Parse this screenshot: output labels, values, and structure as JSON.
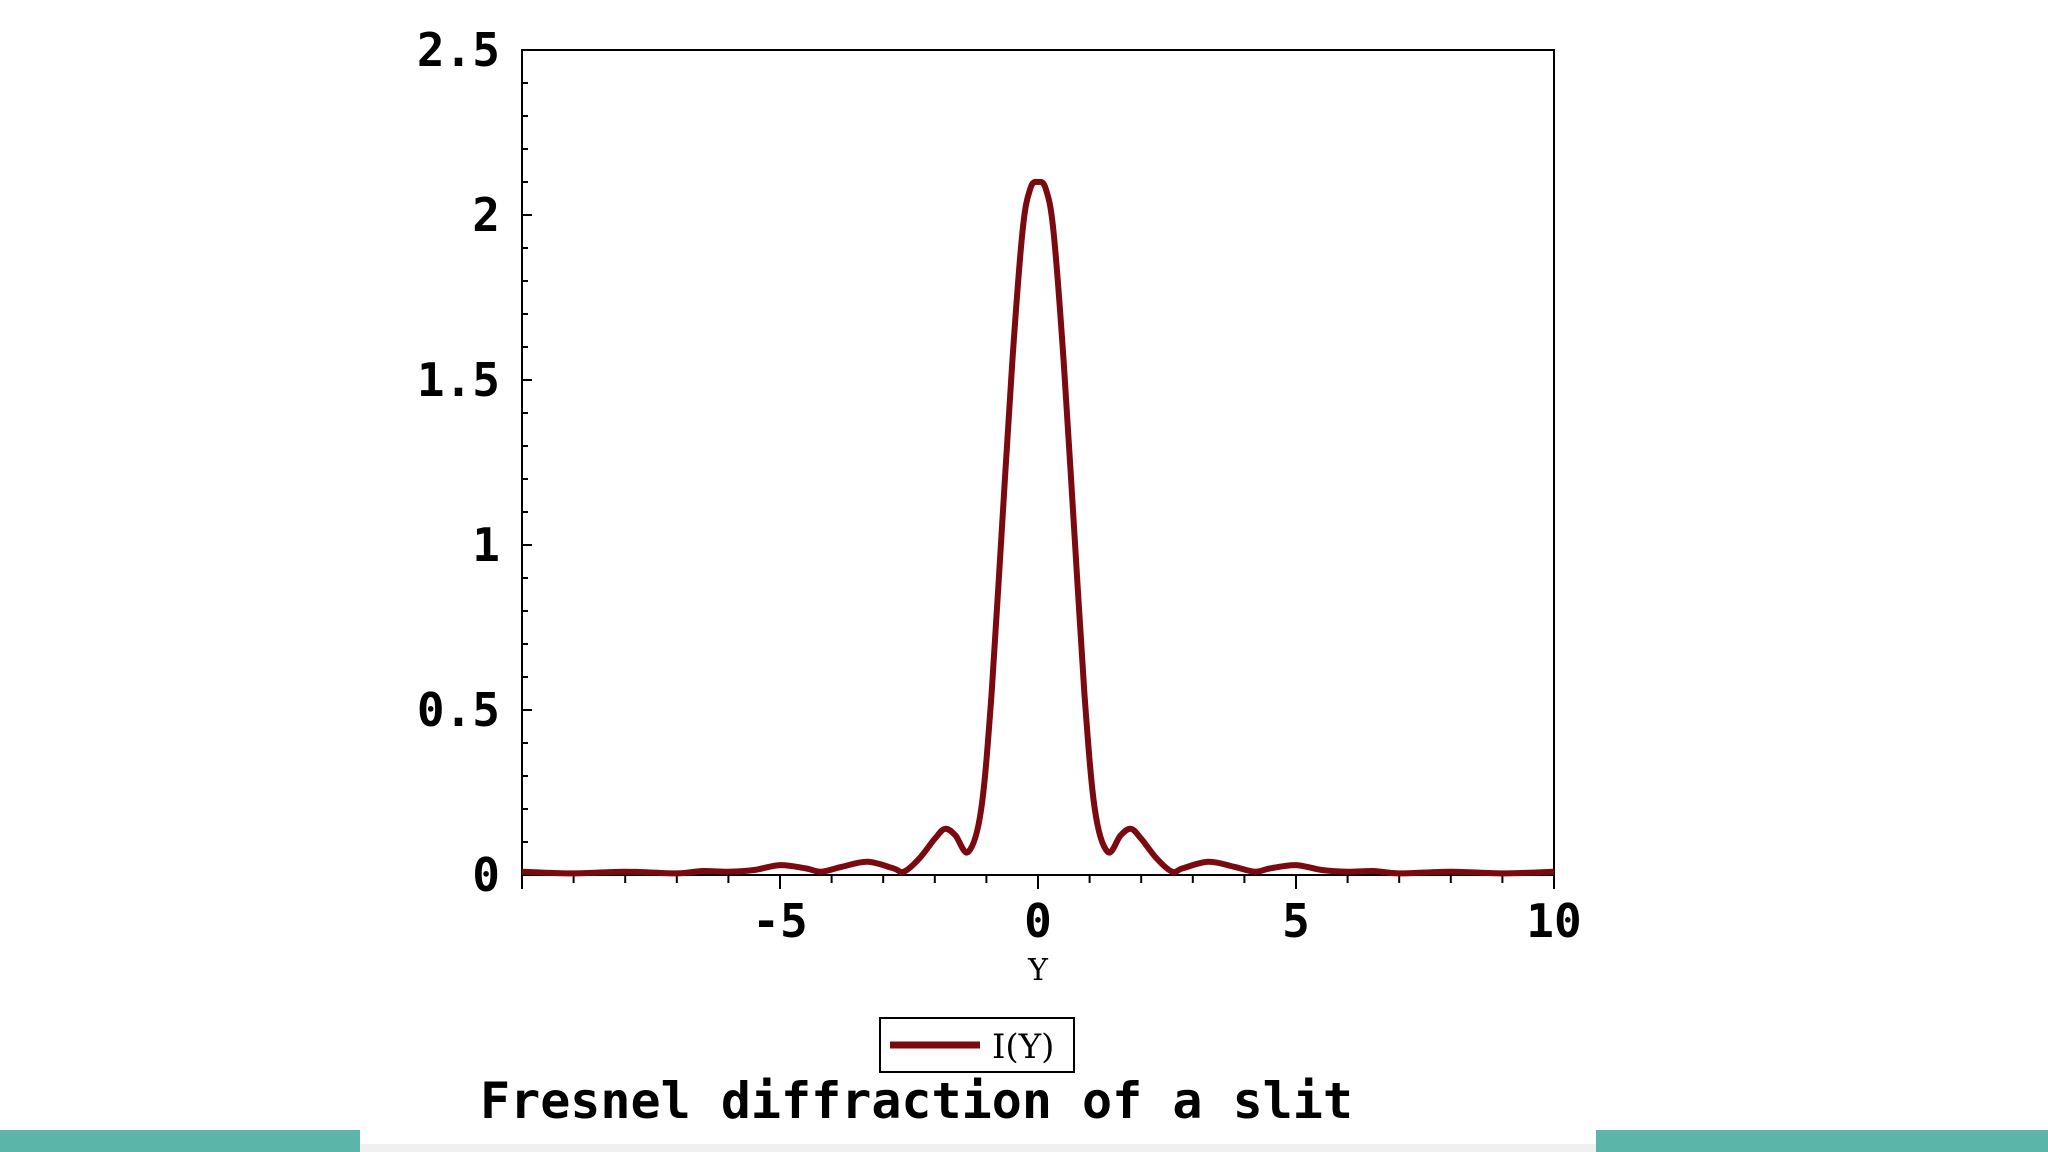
{
  "chart_data": {
    "type": "line",
    "title": "Fresnel diffraction of a slit",
    "xlabel": "Y",
    "ylabel": "",
    "xlim": [
      -10,
      10
    ],
    "ylim": [
      0,
      2.5
    ],
    "xticks": [
      -5,
      0,
      5,
      10
    ],
    "xtick_labels": [
      "-5",
      "0",
      "5",
      "10"
    ],
    "yticks": [
      0,
      0.5,
      1,
      1.5,
      2,
      2.5
    ],
    "ytick_labels": [
      "0",
      "0.5",
      "1",
      "1.5",
      "2",
      "2.5"
    ],
    "grid": false,
    "legend_position": "bottom-center",
    "series": [
      {
        "name": "I(Y)",
        "color": "#7a0a10",
        "x": [
          -10,
          -9,
          -8,
          -7,
          -6.5,
          -6,
          -5.5,
          -5,
          -4.5,
          -4.2,
          -3.8,
          -3.3,
          -2.8,
          -2.6,
          -2.3,
          -2.0,
          -1.8,
          -1.6,
          -1.35,
          -1.1,
          -0.9,
          -0.7,
          -0.5,
          -0.3,
          -0.15,
          0,
          0.15,
          0.3,
          0.5,
          0.7,
          0.9,
          1.1,
          1.35,
          1.6,
          1.8,
          2.0,
          2.3,
          2.6,
          2.8,
          3.3,
          3.8,
          4.2,
          4.5,
          5,
          5.5,
          6,
          6.5,
          7,
          8,
          9,
          10
        ],
        "values": [
          0.01,
          0.005,
          0.01,
          0.005,
          0.012,
          0.01,
          0.015,
          0.03,
          0.02,
          0.01,
          0.025,
          0.04,
          0.02,
          0.01,
          0.05,
          0.11,
          0.14,
          0.12,
          0.07,
          0.2,
          0.55,
          1.05,
          1.55,
          1.95,
          2.08,
          2.1,
          2.08,
          1.95,
          1.55,
          1.05,
          0.55,
          0.2,
          0.07,
          0.12,
          0.14,
          0.11,
          0.05,
          0.01,
          0.02,
          0.04,
          0.025,
          0.01,
          0.02,
          0.03,
          0.015,
          0.01,
          0.012,
          0.005,
          0.01,
          0.005,
          0.01
        ]
      }
    ]
  },
  "theme": {
    "accent_bar": "#5bb5a8",
    "mid_bar": "#f0f0f0"
  }
}
